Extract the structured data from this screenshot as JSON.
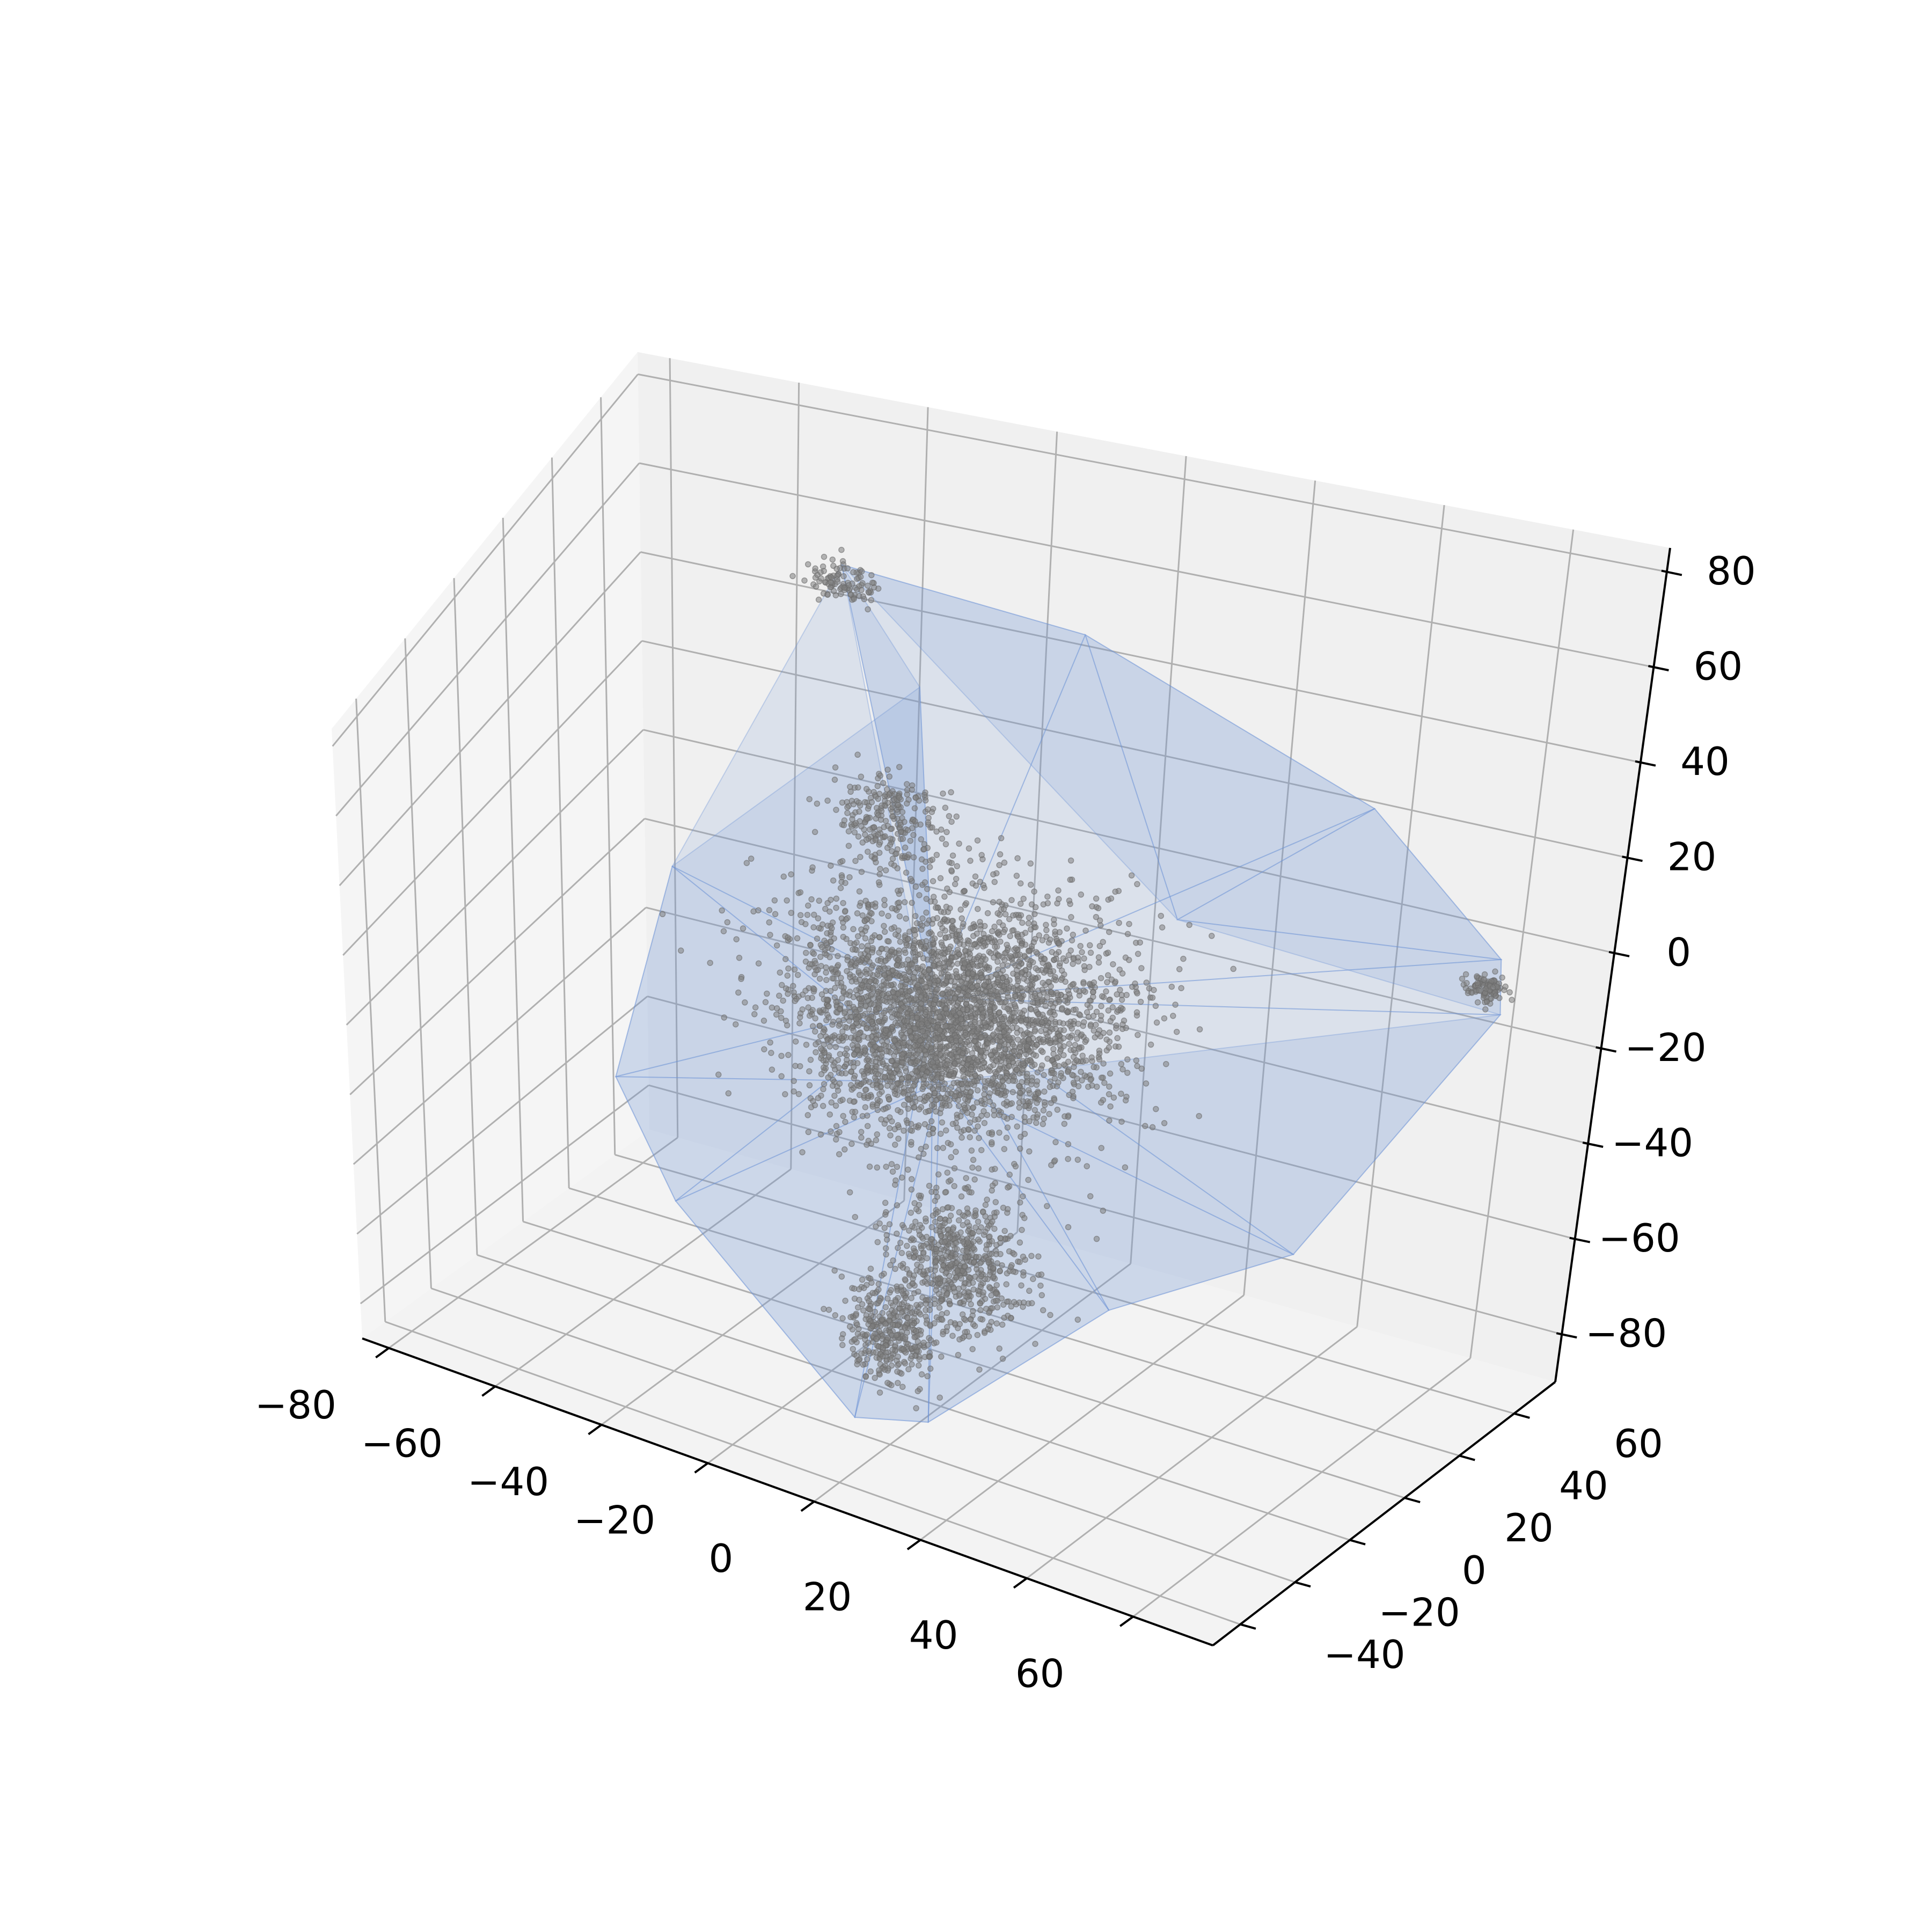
{
  "chart_data": {
    "type": "scatter",
    "subtype": "3d-scatter-with-convex-hull",
    "title": "",
    "xlabel": "",
    "ylabel": "",
    "zlabel": "",
    "xlim": [
      -85,
      75
    ],
    "ylim": [
      -50,
      75
    ],
    "zlim": [
      -90,
      85
    ],
    "grid": true,
    "legend": "none",
    "x_ticks": [
      "−80",
      "−60",
      "−40",
      "−20",
      "0",
      "20",
      "40",
      "60"
    ],
    "y_ticks": [
      "−40",
      "−20",
      "0",
      "20",
      "40",
      "60"
    ],
    "z_ticks": [
      "−80",
      "−60",
      "−40",
      "−20",
      "0",
      "20",
      "40",
      "60",
      "80"
    ],
    "colors": {
      "points": "#808080",
      "hull": "#6f94d6",
      "pane_back": "#f0f0f0",
      "pane_side": "#f5f5f5",
      "pane_floor": "#f3f3f3",
      "grid": "#b0b0b0"
    },
    "point_count_approx": 5000,
    "series": [
      {
        "role": "points",
        "clusters": [
          {
            "center": [
              -2,
              5,
              5
            ],
            "spread": [
              26,
              22,
              24
            ],
            "weight": 0.54
          },
          {
            "center": [
              -18,
              22,
              -20
            ],
            "spread": [
              18,
              14,
              20
            ],
            "weight": 0.17
          },
          {
            "center": [
              10,
              -20,
              -38
            ],
            "spread": [
              12,
              8,
              18
            ],
            "weight": 0.13
          },
          {
            "center": [
              2,
              -28,
              -55
            ],
            "spread": [
              8,
              5,
              12
            ],
            "weight": 0.07
          },
          {
            "center": [
              -30,
              40,
              18
            ],
            "spread": [
              10,
              8,
              10
            ],
            "weight": 0.05
          },
          {
            "center": [
              -45,
              55,
              58
            ],
            "spread": [
              5,
              3,
              4
            ],
            "weight": 0.02
          },
          {
            "center": [
              65,
              50,
              5
            ],
            "spread": [
              3,
              2,
              3
            ],
            "weight": 0.02
          }
        ]
      },
      {
        "role": "convex-hull",
        "vertices": [
          [
            -45,
            55,
            62
          ],
          [
            -30,
            50,
            42
          ],
          [
            -60,
            25,
            5
          ],
          [
            -55,
            -10,
            -25
          ],
          [
            -40,
            -20,
            -45
          ],
          [
            0,
            -35,
            -75
          ],
          [
            12,
            -32,
            -72
          ],
          [
            35,
            -15,
            -42
          ],
          [
            55,
            10,
            -35
          ],
          [
            68,
            50,
            0
          ],
          [
            65,
            55,
            8
          ],
          [
            40,
            60,
            30
          ],
          [
            -10,
            65,
            50
          ],
          [
            -20,
            40,
            -40
          ],
          [
            -5,
            0,
            10
          ],
          [
            20,
            35,
            15
          ]
        ]
      }
    ]
  }
}
